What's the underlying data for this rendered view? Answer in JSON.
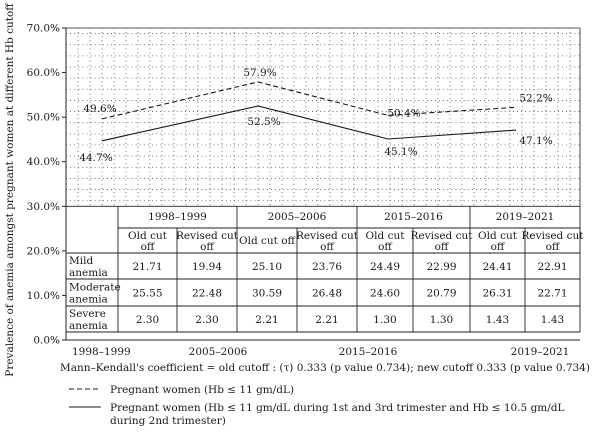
{
  "chart_data": {
    "type": "line",
    "ylabel": "Prevalence of anemia amongst pregnant women at different Hb cutoff",
    "y_ticks": [
      "0.0%",
      "10.0%",
      "20.0%",
      "30.0%",
      "40.0%",
      "50.0%",
      "60.0%",
      "70.0%"
    ],
    "ylim": [
      0,
      70
    ],
    "categories": [
      "1998–1999",
      "2005–2006",
      "2015–2016",
      "2019–2021"
    ],
    "series": [
      {
        "name": "Pregnant women (Hb ≤ 11 gm/dL)",
        "style": "dashed",
        "values": [
          49.6,
          57.9,
          50.4,
          52.2
        ],
        "labels": [
          "49.6%",
          "57.9%",
          "50.4%",
          "52.2%"
        ]
      },
      {
        "name": "Pregnant women (Hb ≤ 11 gm/dL during 1st and 3rd trimester and Hb ≤ 10.5 gm/dL during 2nd trimester)",
        "name_line1": "Pregnant women (Hb ≤ 11 gm/dL during 1st and 3rd trimester and Hb ≤ 10.5 gm/dL",
        "name_line2": "during 2nd trimester)",
        "style": "solid",
        "values": [
          44.7,
          52.5,
          45.1,
          47.1
        ],
        "labels": [
          "44.7%",
          "52.5%",
          "45.1%",
          "47.1%"
        ]
      }
    ],
    "grid": true,
    "table": {
      "col_headers": [
        "Old cut off",
        "Revised cut off"
      ],
      "col_header_line1": [
        "Old cut",
        "Revised cut"
      ],
      "col_header_line2": [
        "off",
        "off"
      ],
      "rows": [
        {
          "label": "Mild anemia",
          "label_line1": "Mild",
          "label_line2": "anemia",
          "values": [
            "21.71",
            "19.94",
            "25.10",
            "23.76",
            "24.49",
            "22.99",
            "24.41",
            "22.91"
          ]
        },
        {
          "label": "Moderate anemia",
          "label_line1": "Moderate",
          "label_line2": "anemia",
          "values": [
            "25.55",
            "22.48",
            "30.59",
            "26.48",
            "24.60",
            "20.79",
            "26.31",
            "22.71"
          ]
        },
        {
          "label": "Severe anemia",
          "label_line1": "Severe",
          "label_line2": "anemia",
          "values": [
            "2.30",
            "2.30",
            "2.21",
            "2.21",
            "1.30",
            "1.30",
            "1.43",
            "1.43"
          ]
        }
      ]
    },
    "caption": "Mann–Kendall's coefficient = old cutoff : (τ) 0.333 (p value 0.734); new cutoff 0.333 (p value 0.734)",
    "legend_position": "bottom"
  }
}
